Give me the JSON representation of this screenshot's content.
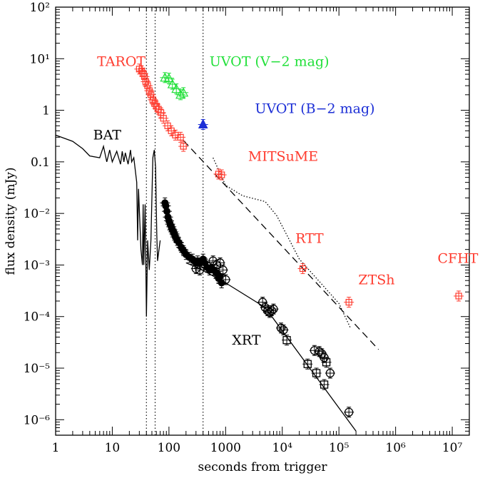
{
  "chart_data": {
    "type": "scatter",
    "xlabel": "seconds from trigger",
    "ylabel": "flux density (mJy)",
    "xscale": "log",
    "yscale": "log",
    "xlim": [
      1,
      20000000
    ],
    "ylim": [
      5.01e-07,
      100
    ],
    "x_ticks": [
      {
        "value": 1,
        "label": "1"
      },
      {
        "value": 10,
        "label": "10"
      },
      {
        "value": 100,
        "label": "100"
      },
      {
        "value": 1000,
        "label": "1000"
      },
      {
        "value": 10000,
        "label": "10⁴"
      },
      {
        "value": 100000,
        "label": "10⁵"
      },
      {
        "value": 1000000,
        "label": "10⁶"
      },
      {
        "value": 10000000,
        "label": "10⁷"
      }
    ],
    "y_ticks": [
      {
        "value": 100,
        "label": "10²"
      },
      {
        "value": 10,
        "label": "10¹"
      },
      {
        "value": 1,
        "label": "1"
      },
      {
        "value": 0.1,
        "label": "0.1"
      },
      {
        "value": 0.01,
        "label": "10⁻²"
      },
      {
        "value": 0.001,
        "label": "10⁻³"
      },
      {
        "value": 0.0001,
        "label": "10⁻⁴"
      },
      {
        "value": 1e-05,
        "label": "10⁻⁵"
      },
      {
        "value": 1e-06,
        "label": "10⁻⁶"
      }
    ],
    "vertical_lines": [
      40,
      57,
      400
    ],
    "annotations": [
      {
        "text": "TAROT",
        "x": 5.4,
        "y": 7.2,
        "color": "#ff3b2e"
      },
      {
        "text": "UVOT (V−2 mag)",
        "x": 520,
        "y": 7.2,
        "color": "#22e03a"
      },
      {
        "text": "UVOT (B−2 mag)",
        "x": 3300,
        "y": 0.88,
        "color": "#1c2fd6"
      },
      {
        "text": "BAT",
        "x": 4.6,
        "y": 0.27,
        "color": "#000000"
      },
      {
        "text": "MITSuME",
        "x": 2500,
        "y": 0.105,
        "color": "#ff3b2e"
      },
      {
        "text": "RTT",
        "x": 17000,
        "y": 0.0027,
        "color": "#ff3b2e"
      },
      {
        "text": "CFHT",
        "x": 5500000,
        "y": 0.0011,
        "color": "#ff3b2e"
      },
      {
        "text": "ZTSh",
        "x": 220000,
        "y": 0.00042,
        "color": "#ff3b2e"
      },
      {
        "text": "XRT",
        "x": 1300,
        "y": 2.85e-05,
        "color": "#000000"
      }
    ],
    "series": [
      {
        "name": "TAROT",
        "color": "#ff3b2e",
        "marker": "square",
        "points": [
          [
            30,
            6.3
          ],
          [
            33,
            5.8
          ],
          [
            35,
            5.2
          ],
          [
            37,
            4.5
          ],
          [
            39,
            3.6
          ],
          [
            42,
            3.0
          ],
          [
            45,
            2.4
          ],
          [
            48,
            2.0
          ],
          [
            52,
            1.6
          ],
          [
            56,
            1.35
          ],
          [
            60,
            1.2
          ],
          [
            65,
            1.05
          ],
          [
            72,
            0.9
          ],
          [
            80,
            0.7
          ],
          [
            95,
            0.5
          ],
          [
            110,
            0.4
          ],
          [
            130,
            0.33
          ],
          [
            160,
            0.3
          ],
          [
            180,
            0.2
          ]
        ]
      },
      {
        "name": "UVOT (V−2 mag)",
        "color": "#22e03a",
        "marker": "triangle",
        "points": [
          [
            85,
            4.3
          ],
          [
            100,
            4.2
          ],
          [
            115,
            3.2
          ],
          [
            135,
            2.6
          ],
          [
            160,
            2.0
          ],
          [
            180,
            2.2
          ]
        ]
      },
      {
        "name": "UVOT (B−2 mag)",
        "color": "#1c2fd6",
        "marker": "filled-triangle",
        "points": [
          [
            400,
            0.53
          ]
        ]
      },
      {
        "name": "MITSuME",
        "color": "#ff3b2e",
        "marker": "square",
        "points": [
          [
            750,
            0.058
          ],
          [
            850,
            0.056
          ]
        ]
      },
      {
        "name": "RTT",
        "color": "#ff3b2e",
        "marker": "square",
        "points": [
          [
            23000,
            0.00085
          ]
        ]
      },
      {
        "name": "ZTSh",
        "color": "#ff3b2e",
        "marker": "square",
        "points": [
          [
            150000,
            0.00019
          ]
        ]
      },
      {
        "name": "CFHT",
        "color": "#ff3b2e",
        "marker": "square",
        "points": [
          [
            13000000,
            0.00025
          ]
        ]
      },
      {
        "name": "XRT",
        "color": "#000000",
        "marker": "filled-circle",
        "points": [
          [
            85,
            0.016
          ],
          [
            88,
            0.014
          ],
          [
            92,
            0.011
          ],
          [
            96,
            0.0085
          ],
          [
            100,
            0.0072
          ],
          [
            105,
            0.0062
          ],
          [
            110,
            0.0055
          ],
          [
            115,
            0.0048
          ],
          [
            120,
            0.0044
          ],
          [
            125,
            0.004
          ],
          [
            130,
            0.0035
          ],
          [
            140,
            0.003
          ],
          [
            150,
            0.0027
          ],
          [
            165,
            0.0022
          ],
          [
            180,
            0.0019
          ],
          [
            200,
            0.0016
          ],
          [
            230,
            0.0014
          ],
          [
            260,
            0.0013
          ],
          [
            300,
            0.0011
          ],
          [
            320,
            0.0012
          ],
          [
            360,
            0.0011
          ],
          [
            400,
            0.0013
          ],
          [
            430,
            0.0011
          ],
          [
            470,
            0.0009
          ],
          [
            520,
            0.0008
          ],
          [
            560,
            0.0009
          ],
          [
            620,
            0.0008
          ],
          [
            680,
            0.0007
          ],
          [
            750,
            0.00055
          ],
          [
            800,
            0.0006
          ],
          [
            850,
            0.00045
          ]
        ]
      },
      {
        "name": "XRT",
        "color": "#000000",
        "marker": "open-circle",
        "points": [
          [
            300,
            0.00085
          ],
          [
            350,
            0.0008
          ],
          [
            600,
            0.0012
          ],
          [
            700,
            0.001
          ],
          [
            800,
            0.0011
          ],
          [
            900,
            0.0008
          ],
          [
            1000,
            0.00052
          ],
          [
            4500,
            0.00019
          ],
          [
            5000,
            0.00015
          ],
          [
            5500,
            0.00013
          ],
          [
            6000,
            0.00012
          ],
          [
            6500,
            0.00013
          ],
          [
            7000,
            0.00014
          ],
          [
            9500,
            6e-05
          ],
          [
            10500,
            5.5e-05
          ],
          [
            37000,
            2.2e-05
          ],
          [
            45000,
            2.1e-05
          ],
          [
            50000,
            1.9e-05
          ],
          [
            55000,
            1.6e-05
          ],
          [
            70000,
            8e-06
          ],
          [
            150000,
            1.4e-06
          ]
        ]
      },
      {
        "name": "XRT",
        "color": "#000000",
        "marker": "open-square",
        "points": [
          [
            12000,
            3.5e-05
          ],
          [
            28000,
            1.2e-05
          ],
          [
            40000,
            8e-06
          ],
          [
            55000,
            4.8e-06
          ],
          [
            60000,
            1.3e-05
          ]
        ]
      }
    ],
    "lines": [
      {
        "name": "BAT",
        "style": "solid",
        "color": "#000000",
        "points": [
          [
            1,
            0.33
          ],
          [
            2,
            0.25
          ],
          [
            3,
            0.18
          ],
          [
            4,
            0.13
          ],
          [
            6,
            0.12
          ],
          [
            7,
            0.2
          ],
          [
            8,
            0.1
          ],
          [
            9,
            0.17
          ],
          [
            10,
            0.1
          ],
          [
            12,
            0.16
          ],
          [
            14,
            0.09
          ],
          [
            15,
            0.16
          ],
          [
            16,
            0.1
          ],
          [
            17,
            0.15
          ],
          [
            19,
            0.09
          ],
          [
            21,
            0.17
          ],
          [
            22,
            0.1
          ],
          [
            24,
            0.12
          ],
          [
            27,
            0.04
          ],
          [
            28,
            0.003
          ],
          [
            29,
            0.03
          ],
          [
            32,
            0.002
          ],
          [
            34,
            0.001
          ],
          [
            35,
            0.015
          ],
          [
            36,
            0.001
          ],
          [
            38,
            0.015
          ],
          [
            40,
            0.0001
          ],
          [
            42,
            0.003
          ],
          [
            45,
            0.0008
          ],
          [
            48,
            0.003
          ],
          [
            52,
            0.12
          ],
          [
            55,
            0.17
          ],
          [
            58,
            0.08
          ],
          [
            61,
            0.004
          ],
          [
            63,
            0.0012
          ],
          [
            66,
            0.0018
          ],
          [
            70,
            0.003
          ]
        ]
      },
      {
        "name": "",
        "style": "dashed",
        "color": "#000000",
        "points": [
          [
            180,
            0.26
          ],
          [
            500000,
            2.3e-05
          ]
        ]
      },
      {
        "name": "",
        "style": "dotted",
        "color": "#000000",
        "points": [
          [
            600,
            0.12
          ],
          [
            1000,
            0.035
          ],
          [
            2000,
            0.022
          ],
          [
            5000,
            0.017
          ],
          [
            8000,
            0.009
          ],
          [
            20000,
            0.0013
          ],
          [
            100000,
            0.00018
          ],
          [
            160000,
            6e-05
          ]
        ]
      },
      {
        "name": "",
        "style": "solid",
        "color": "#000000",
        "points": [
          [
            200,
            0.0011
          ],
          [
            350,
            0.00085
          ],
          [
            1000,
            0.00045
          ],
          [
            5000,
            0.00015
          ],
          [
            200000,
            6e-07
          ]
        ]
      }
    ]
  }
}
